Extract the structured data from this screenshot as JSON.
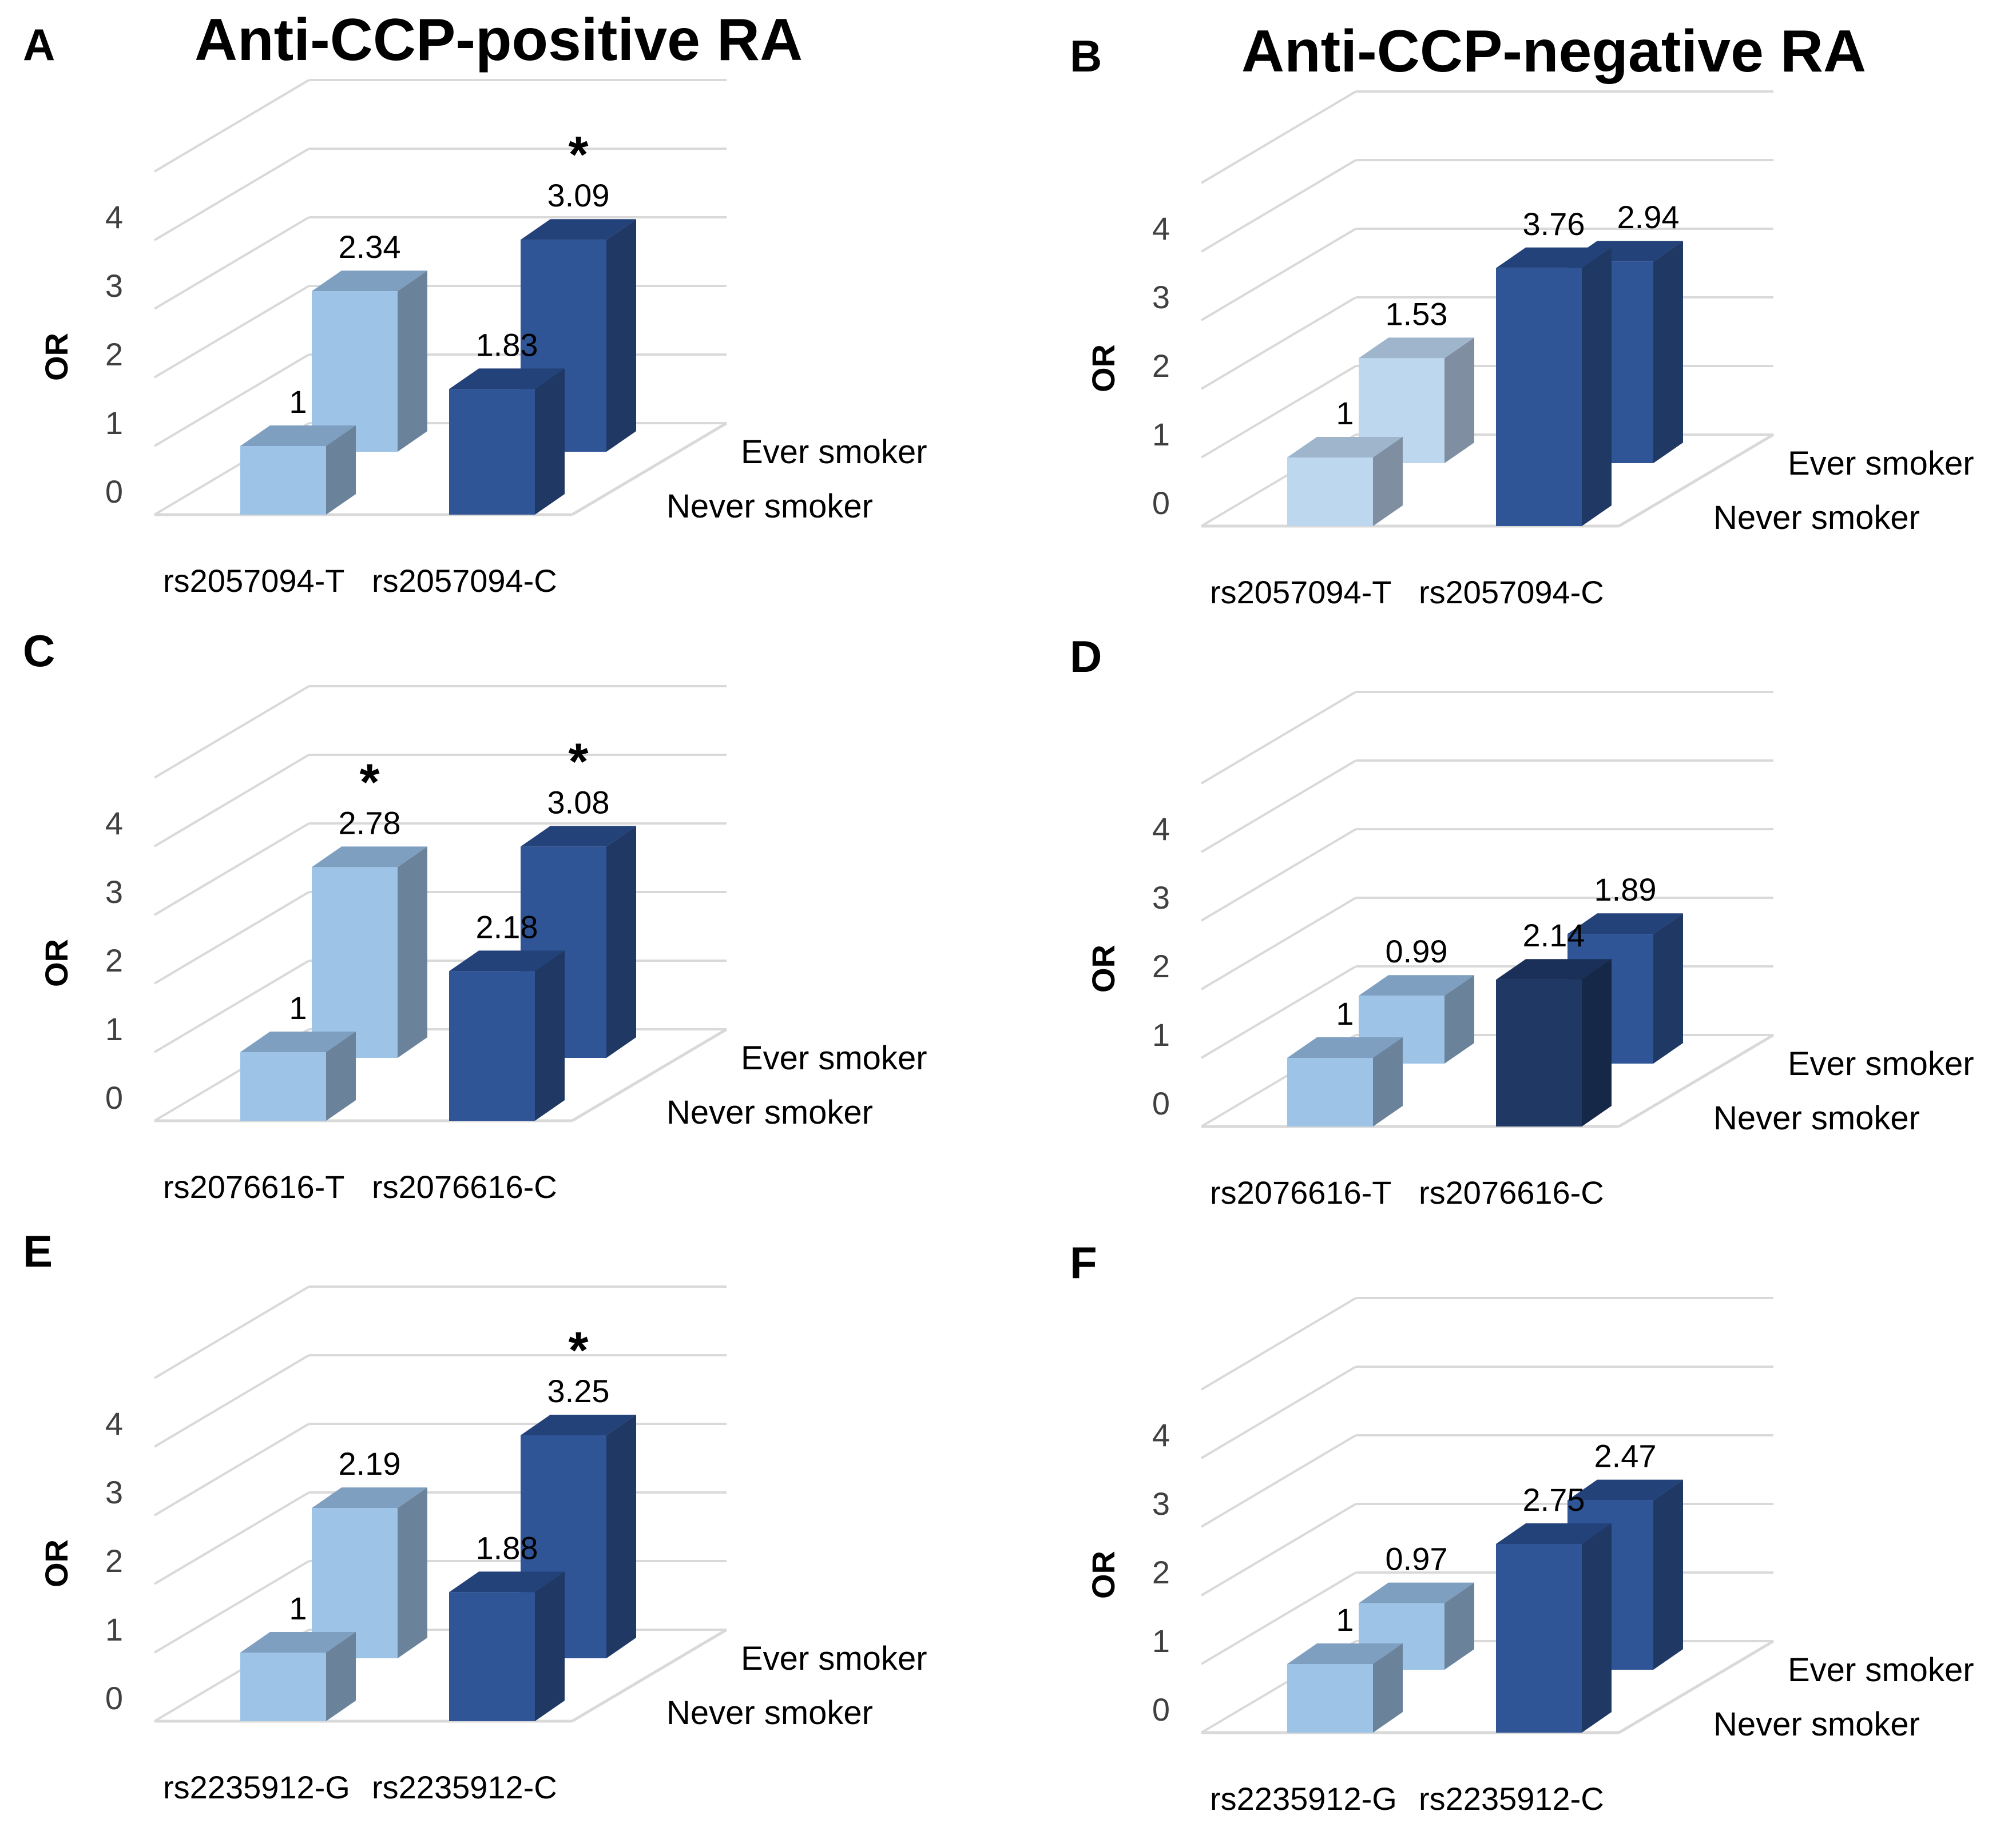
{
  "colors": {
    "light": {
      "front": "#9dc3e6",
      "side": "#6b829b",
      "top": "#7f9fc1"
    },
    "lighter": {
      "front": "#bdd7ee",
      "side": "#7f8fa1",
      "top": "#9fb5cc"
    },
    "dark": {
      "front": "#2f5597",
      "side": "#1f3864",
      "top": "#24427a"
    },
    "darkest": {
      "front": "#203864",
      "side": "#152848",
      "top": "#1a3058"
    },
    "grid": "#d9d9d9",
    "text": "#000000",
    "tick": "#404040"
  },
  "panels": [
    {
      "letter": "A",
      "title": "Anti-CCP-positive RA",
      "chart_data": {
        "type": "bar",
        "categories": [
          "rs2057094-T",
          "rs2057094-C"
        ],
        "depth_categories": [
          "Never smoker",
          "Ever smoker"
        ],
        "series": [
          {
            "name": "Never smoker",
            "values": [
              1,
              1.83
            ],
            "labels": [
              "1",
              "1.83"
            ],
            "colors": [
              "light",
              "dark"
            ],
            "significant": [
              false,
              false
            ]
          },
          {
            "name": "Ever smoker",
            "values": [
              2.34,
              3.09
            ],
            "labels": [
              "2.34",
              "3.09"
            ],
            "colors": [
              "light",
              "dark"
            ],
            "significant": [
              false,
              true
            ]
          }
        ],
        "ylabel": "OR",
        "yticks": [
          "0",
          "1",
          "2",
          "3",
          "4"
        ],
        "ylim": [
          0,
          5
        ]
      }
    },
    {
      "letter": "B",
      "title": "Anti-CCP-negative RA",
      "chart_data": {
        "type": "bar",
        "categories": [
          "rs2057094-T",
          "rs2057094-C"
        ],
        "depth_categories": [
          "Never smoker",
          "Ever smoker"
        ],
        "series": [
          {
            "name": "Never smoker",
            "values": [
              1,
              3.76
            ],
            "labels": [
              "1",
              "3.76"
            ],
            "colors": [
              "lighter",
              "dark"
            ],
            "significant": [
              false,
              false
            ]
          },
          {
            "name": "Ever smoker",
            "values": [
              1.53,
              2.94
            ],
            "labels": [
              "1.53",
              "2.94"
            ],
            "colors": [
              "lighter",
              "dark"
            ],
            "significant": [
              false,
              false
            ]
          }
        ],
        "ylabel": "OR",
        "yticks": [
          "0",
          "1",
          "2",
          "3",
          "4"
        ],
        "ylim": [
          0,
          5
        ]
      }
    },
    {
      "letter": "C",
      "title": "",
      "chart_data": {
        "type": "bar",
        "categories": [
          "rs2076616-T",
          "rs2076616-C"
        ],
        "depth_categories": [
          "Never smoker",
          "Ever smoker"
        ],
        "series": [
          {
            "name": "Never smoker",
            "values": [
              1,
              2.18
            ],
            "labels": [
              "1",
              "2.18"
            ],
            "colors": [
              "light",
              "dark"
            ],
            "significant": [
              false,
              false
            ]
          },
          {
            "name": "Ever smoker",
            "values": [
              2.78,
              3.08
            ],
            "labels": [
              "2.78",
              "3.08"
            ],
            "colors": [
              "light",
              "dark"
            ],
            "significant": [
              true,
              true
            ]
          }
        ],
        "ylabel": "OR",
        "yticks": [
          "0",
          "1",
          "2",
          "3",
          "4"
        ],
        "ylim": [
          0,
          5
        ]
      }
    },
    {
      "letter": "D",
      "title": "",
      "chart_data": {
        "type": "bar",
        "categories": [
          "rs2076616-T",
          "rs2076616-C"
        ],
        "depth_categories": [
          "Never smoker",
          "Ever smoker"
        ],
        "series": [
          {
            "name": "Never smoker",
            "values": [
              1,
              2.14
            ],
            "labels": [
              "1",
              "2.14"
            ],
            "colors": [
              "light",
              "darkest"
            ],
            "significant": [
              false,
              false
            ]
          },
          {
            "name": "Ever smoker",
            "values": [
              0.99,
              1.89
            ],
            "labels": [
              "0.99",
              "1.89"
            ],
            "colors": [
              "light",
              "dark"
            ],
            "significant": [
              false,
              false
            ]
          }
        ],
        "ylabel": "OR",
        "yticks": [
          "0",
          "1",
          "2",
          "3",
          "4"
        ],
        "ylim": [
          0,
          5
        ]
      }
    },
    {
      "letter": "E",
      "title": "",
      "chart_data": {
        "type": "bar",
        "categories": [
          "rs2235912-G",
          "rs2235912-C"
        ],
        "depth_categories": [
          "Never smoker",
          "Ever smoker"
        ],
        "series": [
          {
            "name": "Never smoker",
            "values": [
              1,
              1.88
            ],
            "labels": [
              "1",
              "1.88"
            ],
            "colors": [
              "light",
              "dark"
            ],
            "significant": [
              false,
              false
            ]
          },
          {
            "name": "Ever smoker",
            "values": [
              2.19,
              3.25
            ],
            "labels": [
              "2.19",
              "3.25"
            ],
            "colors": [
              "light",
              "dark"
            ],
            "significant": [
              false,
              true
            ]
          }
        ],
        "ylabel": "OR",
        "yticks": [
          "0",
          "1",
          "2",
          "3",
          "4"
        ],
        "ylim": [
          0,
          5
        ]
      }
    },
    {
      "letter": "F",
      "title": "",
      "chart_data": {
        "type": "bar",
        "categories": [
          "rs2235912-G",
          "rs2235912-C"
        ],
        "depth_categories": [
          "Never smoker",
          "Ever smoker"
        ],
        "series": [
          {
            "name": "Never smoker",
            "values": [
              1,
              2.75
            ],
            "labels": [
              "1",
              "2.75"
            ],
            "colors": [
              "light",
              "dark"
            ],
            "significant": [
              false,
              false
            ]
          },
          {
            "name": "Ever smoker",
            "values": [
              0.97,
              2.47
            ],
            "labels": [
              "0.97",
              "2.47"
            ],
            "colors": [
              "light",
              "dark"
            ],
            "significant": [
              false,
              false
            ]
          }
        ],
        "ylabel": "OR",
        "yticks": [
          "0",
          "1",
          "2",
          "3",
          "4"
        ],
        "ylim": [
          0,
          5
        ]
      }
    }
  ],
  "significance_marker": "*"
}
